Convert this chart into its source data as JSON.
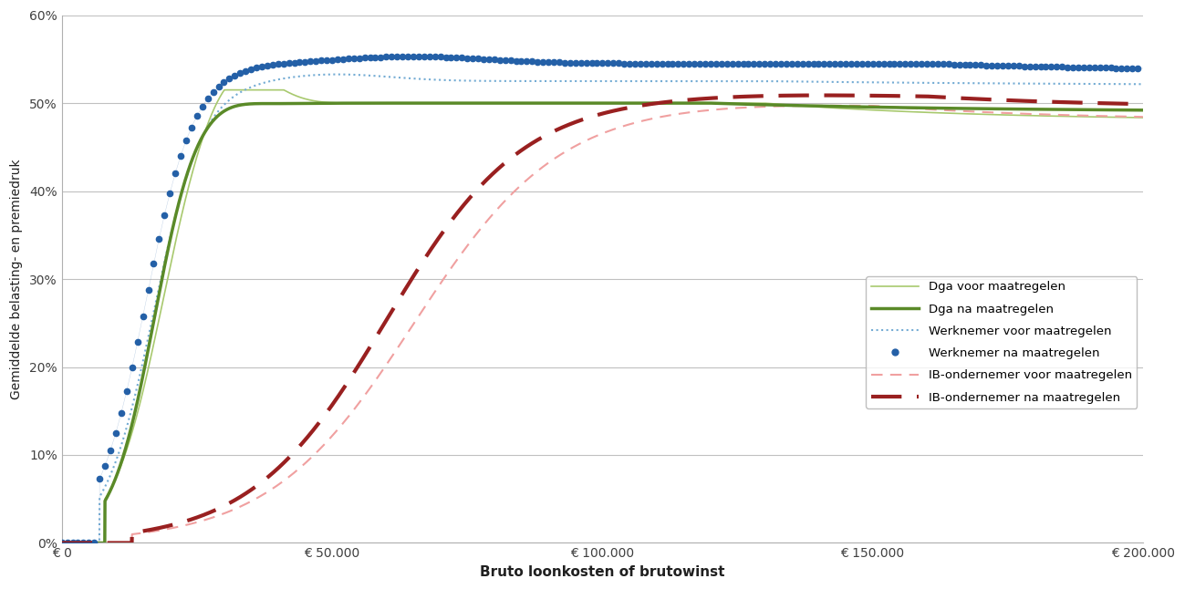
{
  "title": "",
  "xlabel": "Bruto loonkosten of brutowinst",
  "ylabel": "Gemiddelde belasting- en premiedruk",
  "xlim": [
    0,
    200000
  ],
  "ylim": [
    0,
    0.6
  ],
  "xticks": [
    0,
    50000,
    100000,
    150000,
    200000
  ],
  "yticks": [
    0.0,
    0.1,
    0.2,
    0.3,
    0.4,
    0.5,
    0.6
  ],
  "legend": [
    {
      "label": "Dga voor maatregelen",
      "color": "#a8c96e",
      "lw": 1.2,
      "ls": "solid"
    },
    {
      "label": "Dga na maatregelen",
      "color": "#5a8a28",
      "lw": 2.5,
      "ls": "solid"
    },
    {
      "label": "Werknemer voor maatregelen",
      "color": "#74acd4",
      "lw": 1.5,
      "ls": "dotted"
    },
    {
      "label": "Werknemer na maatregelen",
      "color": "#2460a7",
      "lw": 2.5,
      "ls": "dotted"
    },
    {
      "label": "IB-ondernemer voor maatregelen",
      "color": "#f0a0a0",
      "lw": 1.5,
      "ls": "dashed"
    },
    {
      "label": "IB-ondernemer na maatregelen",
      "color": "#992020",
      "lw": 3.0,
      "ls": "dashed"
    }
  ],
  "background_color": "#ffffff",
  "grid_color": "#c0c0c0"
}
